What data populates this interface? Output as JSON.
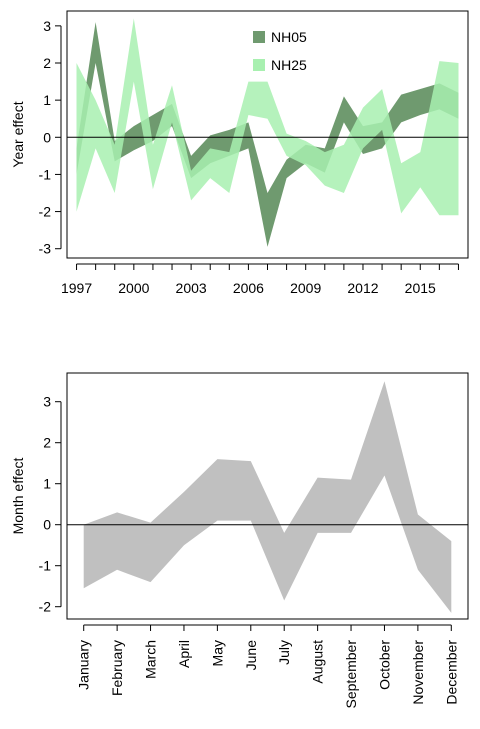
{
  "chart_data": [
    {
      "type": "area",
      "ylabel": "Year effect",
      "xlabel": "",
      "xlim": [
        1996.5,
        2017.5
      ],
      "ylim": [
        -3.25,
        3.4
      ],
      "x_ticks": [
        1997,
        1998,
        1999,
        2000,
        2001,
        2002,
        2003,
        2004,
        2005,
        2006,
        2007,
        2008,
        2009,
        2010,
        2011,
        2012,
        2013,
        2014,
        2015,
        2016,
        2017
      ],
      "x_tick_labels": [
        "1997",
        "2000",
        "2003",
        "2006",
        "2009",
        "2012",
        "2015"
      ],
      "x_tick_label_values": [
        1997,
        2000,
        2003,
        2006,
        2009,
        2012,
        2015
      ],
      "y_ticks": [
        -3,
        -2,
        -1,
        0,
        1,
        2,
        3
      ],
      "y_tick_labels": [
        "-3",
        "-2",
        "-1",
        "0",
        "1",
        "2",
        "3"
      ],
      "reference_line": 0,
      "legend": {
        "position": "top-center"
      },
      "x": [
        1997,
        1998,
        1999,
        2000,
        2001,
        2002,
        2003,
        2004,
        2005,
        2006,
        2007,
        2008,
        2009,
        2010,
        2011,
        2012,
        2013,
        2014,
        2015,
        2016,
        2017
      ],
      "series": [
        {
          "name": "NH05",
          "color": "#6f9a6f",
          "upper": [
            -0.3,
            3.1,
            -0.1,
            0.3,
            0.6,
            0.9,
            -0.5,
            0.05,
            0.2,
            0.4,
            -1.5,
            -0.6,
            -0.2,
            -0.3,
            1.1,
            0.3,
            0.4,
            1.15,
            1.3,
            1.45,
            1.2
          ],
          "lower": [
            -1.0,
            2.0,
            -0.65,
            -0.35,
            -0.1,
            0.3,
            -1.1,
            -0.7,
            -0.5,
            -0.3,
            -2.95,
            -1.1,
            -0.7,
            -0.95,
            0.4,
            -0.45,
            -0.3,
            0.4,
            0.6,
            0.75,
            0.5
          ]
        },
        {
          "name": "NH25",
          "color": "#a8f0b0",
          "upper": [
            2.0,
            1.0,
            -0.2,
            3.2,
            -0.2,
            1.4,
            -0.9,
            -0.3,
            -0.4,
            1.5,
            1.5,
            0.1,
            -0.1,
            -0.4,
            -0.2,
            0.8,
            1.3,
            -0.7,
            -0.4,
            2.05,
            2.0
          ],
          "lower": [
            -2.0,
            -0.3,
            -1.5,
            1.5,
            -1.4,
            0.4,
            -1.7,
            -1.1,
            -1.5,
            0.6,
            0.5,
            -0.5,
            -0.75,
            -1.3,
            -1.5,
            -0.3,
            0.2,
            -2.05,
            -1.35,
            -2.1,
            -2.1
          ]
        }
      ]
    },
    {
      "type": "area",
      "ylabel": "Month effect",
      "xlabel": "",
      "ylim": [
        -2.3,
        3.7
      ],
      "categories": [
        "January",
        "February",
        "March",
        "April",
        "May",
        "June",
        "July",
        "August",
        "September",
        "October",
        "November",
        "December"
      ],
      "y_ticks": [
        -2,
        -1,
        0,
        1,
        2,
        3
      ],
      "y_tick_labels": [
        "-2",
        "-1",
        "0",
        "1",
        "2",
        "3"
      ],
      "reference_line": 0,
      "series": [
        {
          "color": "#c0c0c0",
          "upper": [
            0.0,
            0.3,
            0.05,
            0.8,
            1.6,
            1.55,
            -0.2,
            1.15,
            1.1,
            3.5,
            0.25,
            -0.4
          ],
          "lower": [
            -1.55,
            -1.1,
            -1.4,
            -0.5,
            0.1,
            0.1,
            -1.85,
            -0.2,
            -0.2,
            1.2,
            -1.1,
            -2.15
          ]
        }
      ]
    }
  ]
}
